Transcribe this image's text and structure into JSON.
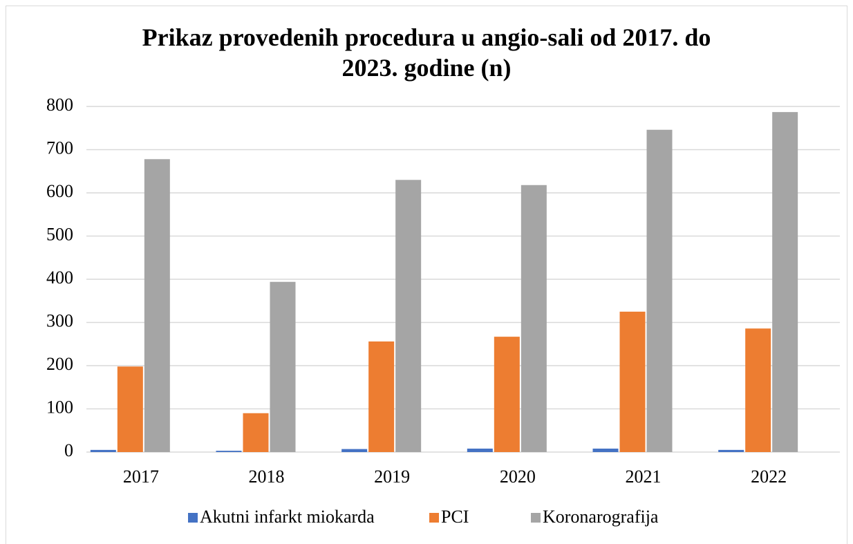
{
  "chart_data": {
    "type": "bar",
    "title": "Prikaz provedenih procedura u angio-sali od 2017. do 2023. godine (n)",
    "categories": [
      "2017",
      "2018",
      "2019",
      "2020",
      "2021",
      "2022"
    ],
    "series": [
      {
        "name": "Akutni infarkt miokarda",
        "color": "#4472c4",
        "values": [
          5,
          3,
          7,
          8,
          8,
          5
        ]
      },
      {
        "name": "PCI",
        "color": "#ed7d31",
        "values": [
          198,
          90,
          256,
          267,
          325,
          286
        ]
      },
      {
        "name": "Koronarografija",
        "color": "#a5a5a5",
        "values": [
          678,
          394,
          630,
          618,
          746,
          787
        ]
      }
    ],
    "ylim": [
      0,
      800
    ],
    "yticks": [
      0,
      100,
      200,
      300,
      400,
      500,
      600,
      700,
      800
    ],
    "grid": true,
    "legend": "bottom"
  }
}
